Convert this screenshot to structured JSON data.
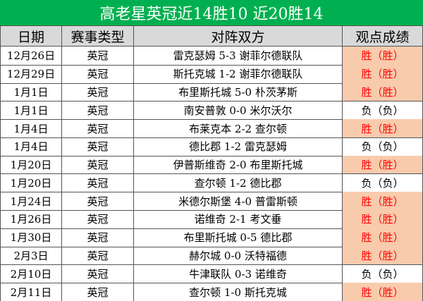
{
  "table": {
    "title": "高老星英冠近14胜10  近20胜14",
    "title_color": "#00b050",
    "header": [
      "日期",
      "赛事类型",
      "对阵双方",
      "观点成绩"
    ],
    "rows": [
      [
        "12月26日",
        "英冠",
        "雷克瑟姆 5-3 谢菲尔德联队",
        "胜（胜）"
      ],
      [
        "12月29日",
        "英冠",
        "斯托克城 1-2 谢菲尔德联队",
        "胜（胜）"
      ],
      [
        "1月1日",
        "英冠",
        "布里斯托城 5-0 朴茨茅斯",
        "胜（胜）"
      ],
      [
        "1月1日",
        "英冠",
        "南安普敦 0-0 米尔沃尔",
        "负（负）"
      ],
      [
        "1月4日",
        "英冠",
        "布莱克本 2-2 查尔顿",
        "胜（胜）"
      ],
      [
        "1月4日",
        "英冠",
        "德比郡 1-2 雷克瑟姆",
        "负（负）"
      ],
      [
        "1月20日",
        "英冠",
        "伊普斯维奇 2-0 布里斯托城",
        "胜（胜）"
      ],
      [
        "1月20日",
        "英冠",
        "查尔顿 1-2 德比郡",
        "负（负）"
      ],
      [
        "1月24日",
        "英冠",
        "米德尔斯堡 4-0 普雷斯顿",
        "胜（胜）"
      ],
      [
        "1月26日",
        "英冠",
        "诺维奇 2-1 考文垂",
        "胜（胜）"
      ],
      [
        "1月30日",
        "英冠",
        "布里斯托城 0-5 德比郡",
        "胜（胜）"
      ],
      [
        "2月3日",
        "英冠",
        "赫尔城 0-0 沃特福德",
        "胜（胜）"
      ],
      [
        "2月10日",
        "英冠",
        "牛津联队 0-3 诺维奇",
        "负（负）"
      ],
      [
        "2月11日",
        "英冠",
        "查尔顿 1-0 斯托克城",
        "胜（胜）"
      ]
    ],
    "highlighted": [
      true,
      true,
      true,
      false,
      true,
      false,
      true,
      false,
      true,
      true,
      true,
      true,
      false,
      true
    ],
    "highlight_fill": "#f8cbad",
    "highlight_text": "#ff0000"
  }
}
